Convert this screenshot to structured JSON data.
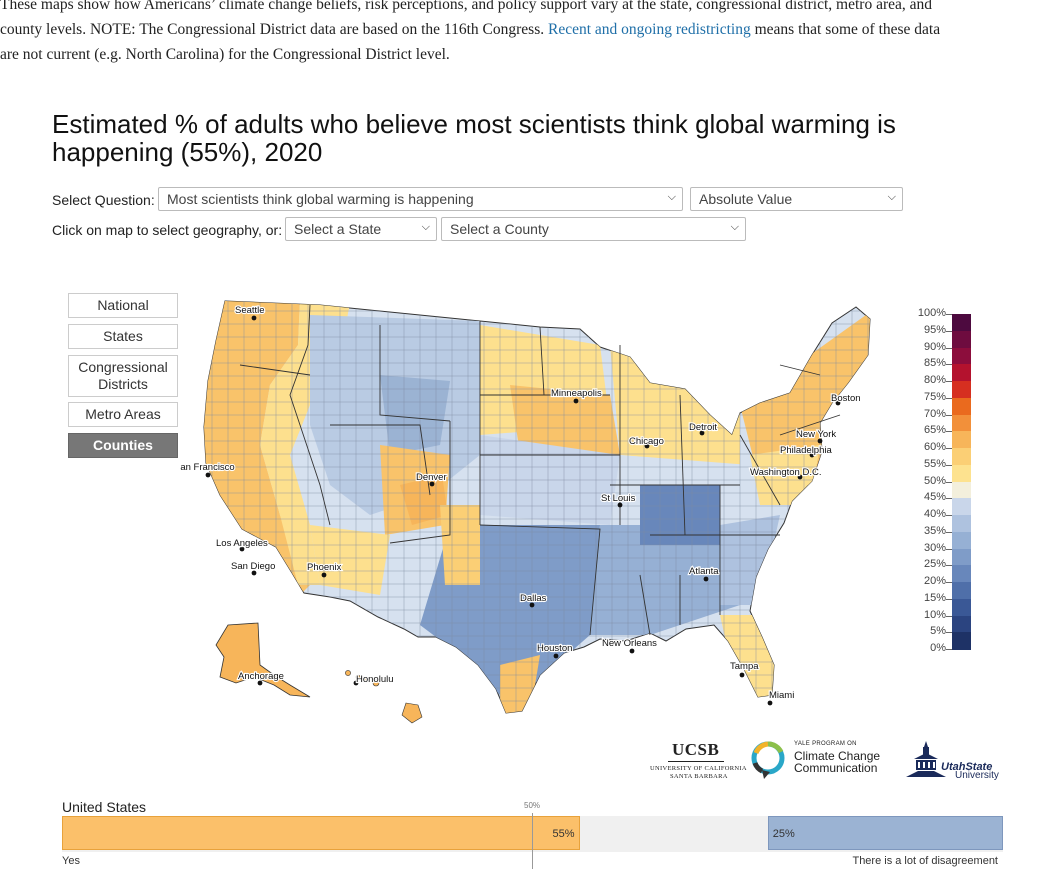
{
  "intro": {
    "line1": "These maps show how Americans’ climate change beliefs, risk perceptions, and policy support vary at the state, congressional district, metro area, and",
    "line2_a": "county levels. NOTE: The Congressional District data are based on the 116th Congress. ",
    "link": "Recent and ongoing redistricting",
    "line2_b": " means that some of these data",
    "line3": "are not current (e.g. North Carolina) for the Congressional District level."
  },
  "title": "Estimated % of adults who believe most scientists think global warming is happening (55%), 2020",
  "controls": {
    "question_label": "Select Question:",
    "question_value": "Most scientists think global warming is happening",
    "value_type": "Absolute Value",
    "geo_label": "Click on map to select geography, or:",
    "state_placeholder": "Select a State",
    "county_placeholder": "Select a County"
  },
  "geography_buttons": [
    {
      "label": "National",
      "active": false
    },
    {
      "label": "States",
      "active": false
    },
    {
      "label": "Congressional Districts",
      "active": false
    },
    {
      "label": "Metro Areas",
      "active": false
    },
    {
      "label": "Counties",
      "active": true
    }
  ],
  "legend": {
    "ticks": [
      "100%",
      "95%",
      "90%",
      "85%",
      "80%",
      "75%",
      "70%",
      "65%",
      "60%",
      "55%",
      "50%",
      "45%",
      "40%",
      "35%",
      "30%",
      "25%",
      "20%",
      "15%",
      "10%",
      "5%",
      "0%"
    ],
    "colors": [
      "#4d0a3f",
      "#6e0c3f",
      "#8c0d3c",
      "#b4122e",
      "#d62f20",
      "#ea6a1e",
      "#f2903a",
      "#f7b55a",
      "#fbcf75",
      "#fde28f",
      "#f3efdc",
      "#c9d6ea",
      "#aec2df",
      "#96b0d4",
      "#7f9cc8",
      "#6887bb",
      "#4f6fa9",
      "#3a5896",
      "#2b4480",
      "#1e3266"
    ]
  },
  "cities": [
    "Seattle",
    "San Francisco",
    "Los Angeles",
    "San Diego",
    "Phoenix",
    "Denver",
    "Minneapolis",
    "Chicago",
    "Detroit",
    "St Louis",
    "Dallas",
    "Houston",
    "New Orleans",
    "Atlanta",
    "Tampa",
    "Miami",
    "Washington D.C.",
    "Philadelphia",
    "New York",
    "Boston",
    "Anchorage",
    "Honolulu"
  ],
  "logos": {
    "ucsb_main": "UCSB",
    "ucsb_sub1": "UNIVERSITY OF CALIFORNIA",
    "ucsb_sub2": "SANTA BARBARA",
    "yale_small": "YALE PROGRAM ON",
    "yale_line1": "Climate Change",
    "yale_line2": "Communication",
    "usu_line1": "UtahState",
    "usu_line2": "University"
  },
  "bar": {
    "region": "United States",
    "midpoint_label": "50%",
    "yes_label": "55%",
    "no_label": "25%",
    "left_caption": "Yes",
    "right_caption": "There is a lot of disagreement",
    "yes_color": "#fbc06a",
    "no_color": "#9bb3d3",
    "neutral_color": "#f0f0f0"
  },
  "chart_data": {
    "type": "bar",
    "title": "United States",
    "categories": [
      "Yes",
      "There is a lot of disagreement"
    ],
    "values": [
      55,
      25
    ],
    "xlim": [
      0,
      100
    ],
    "reference_line": 50
  }
}
